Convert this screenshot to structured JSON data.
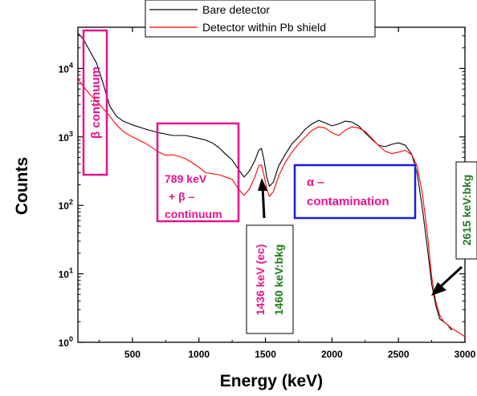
{
  "chart_data": {
    "type": "line",
    "xlabel": "Energy (keV)",
    "ylabel": "Counts",
    "xlim": [
      90,
      3000
    ],
    "ylim": [
      1,
      40000
    ],
    "yscale": "log",
    "x_ticks": [
      500,
      1000,
      1500,
      2000,
      2500,
      3000
    ],
    "x_tick_labels": [
      "500",
      "1000",
      "1500",
      "2000",
      "2500",
      "3000"
    ],
    "y_ticks": [
      1,
      10,
      100,
      1000,
      10000
    ],
    "y_tick_labels": [
      {
        "base": "10",
        "exp": "0"
      },
      {
        "base": "10",
        "exp": "1"
      },
      {
        "base": "10",
        "exp": "2"
      },
      {
        "base": "10",
        "exp": "3"
      },
      {
        "base": "10",
        "exp": "4"
      }
    ],
    "legend_position": "top-center",
    "series": [
      {
        "name": "Bare detector",
        "color": "#000000",
        "x": [
          90,
          130,
          180,
          230,
          280,
          330,
          380,
          430,
          500,
          600,
          700,
          800,
          900,
          1000,
          1050,
          1100,
          1150,
          1200,
          1250,
          1300,
          1340,
          1380,
          1420,
          1450,
          1470,
          1490,
          1510,
          1530,
          1560,
          1600,
          1650,
          1700,
          1750,
          1800,
          1850,
          1900,
          1950,
          2000,
          2050,
          2100,
          2150,
          2200,
          2250,
          2300,
          2350,
          2400,
          2450,
          2500,
          2550,
          2600,
          2640,
          2680,
          2720,
          2750,
          2780,
          2810,
          2840,
          2870,
          2900
        ],
        "y": [
          33000,
          27000,
          18000,
          12000,
          6000,
          2800,
          2000,
          1700,
          1500,
          1300,
          1150,
          1050,
          1050,
          950,
          900,
          820,
          700,
          560,
          460,
          330,
          260,
          320,
          450,
          640,
          680,
          450,
          260,
          190,
          220,
          380,
          560,
          800,
          1000,
          1300,
          1550,
          1750,
          1600,
          1450,
          1550,
          1700,
          1650,
          1450,
          1150,
          920,
          760,
          720,
          780,
          820,
          760,
          560,
          300,
          90,
          22,
          7,
          3.5,
          2.2,
          2.0,
          1.8,
          1.5
        ]
      },
      {
        "name": "Detector within Pb shield",
        "color": "#ff0000",
        "x": [
          90,
          130,
          180,
          230,
          280,
          330,
          380,
          430,
          500,
          600,
          700,
          750,
          800,
          850,
          900,
          950,
          1000,
          1050,
          1100,
          1150,
          1200,
          1250,
          1300,
          1340,
          1380,
          1420,
          1450,
          1470,
          1490,
          1510,
          1530,
          1560,
          1600,
          1650,
          1700,
          1750,
          1800,
          1850,
          1900,
          1950,
          2000,
          2050,
          2100,
          2150,
          2200,
          2250,
          2300,
          2350,
          2400,
          2450,
          2500,
          2550,
          2600,
          2640,
          2680,
          2720,
          2750,
          2780,
          2810,
          2840,
          2870,
          2900,
          2950,
          3000
        ],
        "y": [
          7000,
          5500,
          4200,
          3300,
          2600,
          2000,
          1500,
          1200,
          1000,
          800,
          600,
          540,
          550,
          520,
          480,
          420,
          360,
          300,
          290,
          280,
          260,
          240,
          170,
          140,
          175,
          260,
          380,
          390,
          270,
          175,
          135,
          160,
          270,
          430,
          600,
          800,
          1000,
          1250,
          1400,
          1350,
          1150,
          1050,
          1250,
          1400,
          1350,
          1200,
          950,
          750,
          620,
          570,
          600,
          640,
          550,
          380,
          150,
          35,
          9,
          4,
          2.5,
          2.0,
          1.8,
          1.6,
          1.4,
          1.2
        ]
      }
    ],
    "annotations": {
      "beta_continuum": "β continuum",
      "pb789_line1": "789 keV",
      "pb789_line2": "+ β –",
      "pb789_line3": "continuum",
      "alpha_line1": "α –",
      "alpha_line2": "contamination",
      "ec1436": "1436 keV (ec)",
      "bkg1460": "1460 keV:bkg",
      "bkg2615": "2615 keV:bkg"
    }
  },
  "colors": {
    "magenta": "#e8128c",
    "blue": "#1a1ae6",
    "green": "#1f7a1f",
    "red": "#ff0000",
    "black": "#000000"
  }
}
